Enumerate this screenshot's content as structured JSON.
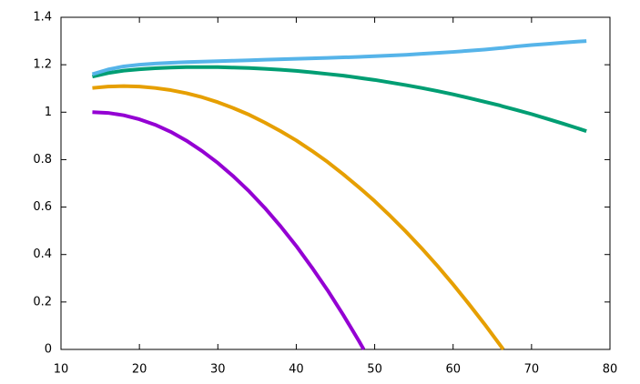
{
  "chart_data": {
    "type": "line",
    "x": [
      14,
      16,
      18,
      20,
      22,
      24,
      26,
      28,
      30,
      32,
      34,
      36,
      38,
      40,
      42,
      44,
      46,
      48,
      48.6,
      50,
      52,
      54,
      56,
      58,
      60,
      62,
      64,
      66,
      66.4,
      68,
      70,
      72,
      74,
      76,
      77
    ],
    "series": [
      {
        "color": "#9400d3",
        "values": [
          1.0,
          0.997,
          0.987,
          0.97,
          0.947,
          0.917,
          0.88,
          0.836,
          0.786,
          0.729,
          0.666,
          0.596,
          0.519,
          0.436,
          0.345,
          0.249,
          0.145,
          0.035,
          0,
          null,
          null,
          null,
          null,
          null,
          null,
          null,
          null,
          null,
          null,
          null,
          null,
          null,
          null,
          null,
          null
        ]
      },
      {
        "color": "#e69f00",
        "values": [
          1.102,
          1.108,
          1.11,
          1.108,
          1.102,
          1.093,
          1.08,
          1.063,
          1.042,
          1.017,
          0.989,
          0.956,
          0.92,
          0.881,
          0.837,
          0.79,
          0.738,
          0.683,
          0.666,
          0.625,
          0.562,
          0.496,
          0.426,
          0.352,
          0.274,
          0.192,
          0.107,
          0.018,
          0,
          null,
          null,
          null,
          null,
          null,
          null
        ]
      },
      {
        "color": "#009e73",
        "values": [
          1.15,
          1.165,
          1.175,
          1.181,
          1.185,
          1.188,
          1.19,
          1.19,
          1.19,
          1.188,
          1.186,
          1.183,
          1.179,
          1.174,
          1.168,
          1.161,
          1.154,
          1.145,
          1.142,
          1.136,
          1.125,
          1.114,
          1.102,
          1.089,
          1.075,
          1.06,
          1.044,
          1.028,
          1.024,
          1.01,
          0.992,
          0.972,
          0.952,
          0.931,
          0.92
        ]
      },
      {
        "color": "#56b4e9",
        "values": [
          1.16,
          1.18,
          1.193,
          1.2,
          1.205,
          1.208,
          1.211,
          1.213,
          1.215,
          1.217,
          1.219,
          1.221,
          1.223,
          1.225,
          1.227,
          1.229,
          1.231,
          1.233,
          1.234,
          1.236,
          1.239,
          1.242,
          1.246,
          1.25,
          1.254,
          1.259,
          1.264,
          1.27,
          1.271,
          1.277,
          1.283,
          1.288,
          1.293,
          1.298,
          1.3
        ]
      }
    ],
    "xlim": [
      10,
      80
    ],
    "xticks": [
      10,
      20,
      30,
      40,
      50,
      60,
      70,
      80
    ],
    "ylim": [
      0,
      1.4
    ],
    "yticks": [
      0,
      0.2,
      0.4,
      0.6,
      0.8,
      1,
      1.2,
      1.4
    ],
    "grid": false
  }
}
